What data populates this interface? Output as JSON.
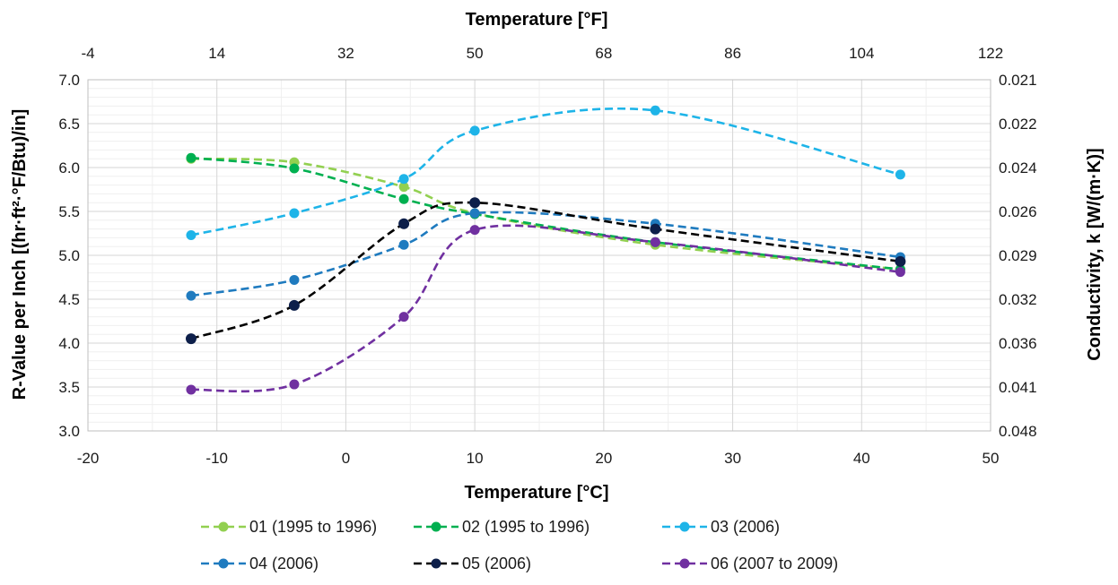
{
  "chart_data": {
    "type": "line",
    "title": "",
    "xlabel": "Temperature [°C]",
    "x2label": "Temperature [°F]",
    "ylabel": "R-Value per Inch [(hr·ft²·°F/Btu)/in]",
    "y2label": "Conductivity, k [W/(m·K)]",
    "xlim": [
      -20,
      50
    ],
    "ylim": [
      3.0,
      7.0
    ],
    "x_ticks": [
      "-20",
      "-10",
      "0",
      "10",
      "20",
      "30",
      "40",
      "50"
    ],
    "y_ticks": [
      "3.0",
      "3.5",
      "4.0",
      "4.5",
      "5.0",
      "5.5",
      "6.0",
      "6.5",
      "7.0"
    ],
    "x2_ticks": [
      "-4",
      "14",
      "32",
      "50",
      "68",
      "86",
      "104",
      "122"
    ],
    "y2_ticks": [
      "0.048",
      "0.041",
      "0.036",
      "0.032",
      "0.029",
      "0.026",
      "0.024",
      "0.022",
      "0.021"
    ],
    "grid": true,
    "minor_grid": true,
    "legend_position": "bottom",
    "series": [
      {
        "name": "01 (1995 to 1996)",
        "color": "#92d050",
        "x": [
          -12,
          -4,
          4.5,
          10,
          24,
          43
        ],
        "y": [
          6.1,
          6.06,
          5.78,
          5.48,
          5.12,
          4.84
        ]
      },
      {
        "name": "02 (1995 to 1996)",
        "color": "#00b050",
        "x": [
          -12,
          -4,
          4.5,
          10,
          24,
          43
        ],
        "y": [
          6.11,
          5.99,
          5.64,
          5.47,
          5.15,
          4.84
        ]
      },
      {
        "name": "03 (2006)",
        "color": "#1eb4e8",
        "x": [
          -12,
          -4,
          4.5,
          10,
          24,
          43
        ],
        "y": [
          5.23,
          5.48,
          5.87,
          6.42,
          6.65,
          5.92
        ]
      },
      {
        "name": "04 (2006)",
        "color": "#1f7bbf",
        "x": [
          -12,
          -4,
          4.5,
          10,
          24,
          43
        ],
        "y": [
          4.54,
          4.72,
          5.12,
          5.48,
          5.36,
          4.98
        ]
      },
      {
        "name": "05 (2006)",
        "color": "#000000",
        "marker": "#0d1f4a",
        "x": [
          -12,
          -4,
          4.5,
          10,
          24,
          43
        ],
        "y": [
          4.05,
          4.43,
          5.36,
          5.6,
          5.3,
          4.93
        ]
      },
      {
        "name": "06 (2007 to 2009)",
        "color": "#7030a0",
        "x": [
          -12,
          -4,
          4.5,
          10,
          24,
          43
        ],
        "y": [
          3.47,
          3.53,
          4.3,
          5.29,
          5.15,
          4.81
        ]
      }
    ]
  }
}
